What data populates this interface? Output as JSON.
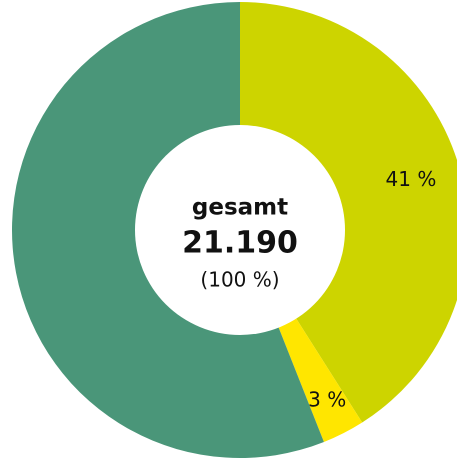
{
  "chart_data": {
    "type": "donut",
    "values": [
      41,
      3,
      56
    ],
    "value_labels": [
      "41 %",
      "3 %",
      null
    ],
    "colors": [
      "#cdd400",
      "#ffe600",
      "#4a9679"
    ],
    "center_title": "gesamt",
    "center_value": "21.190",
    "center_share": "(100 %)"
  }
}
